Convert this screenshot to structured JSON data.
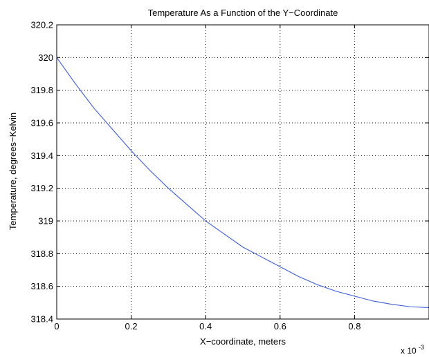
{
  "chart_data": {
    "type": "line",
    "title": "Temperature As a Function of the Y−Coordinate",
    "xlabel": "X−coordinate, meters",
    "ylabel": "Temperature, degrees−Kelvin",
    "x_multiplier": "x 10",
    "x_multiplier_exponent": "-3",
    "xlim": [
      0,
      1
    ],
    "ylim": [
      318.4,
      320.2
    ],
    "xticks": [
      0,
      0.2,
      0.4,
      0.6,
      0.8
    ],
    "xtick_labels": [
      "0",
      "0.2",
      "0.4",
      "0.6",
      "0.8"
    ],
    "yticks": [
      318.4,
      318.6,
      318.8,
      319,
      319.2,
      319.4,
      319.6,
      319.8,
      320,
      320.2
    ],
    "ytick_labels": [
      "318.4",
      "318.6",
      "318.8",
      "319",
      "319.2",
      "319.4",
      "319.6",
      "319.8",
      "320",
      "320.2"
    ],
    "grid": true,
    "series": [
      {
        "color": "#3b5bdb",
        "x": [
          0,
          0.05,
          0.1,
          0.15,
          0.2,
          0.25,
          0.3,
          0.35,
          0.4,
          0.45,
          0.5,
          0.55,
          0.6,
          0.65,
          0.7,
          0.75,
          0.8,
          0.85,
          0.9,
          0.95,
          1.0
        ],
        "y": [
          320.0,
          319.84,
          319.69,
          319.56,
          319.43,
          319.31,
          319.2,
          319.1,
          319.0,
          318.92,
          318.84,
          318.78,
          318.72,
          318.66,
          318.61,
          318.57,
          318.54,
          318.51,
          318.49,
          318.475,
          318.47
        ]
      }
    ]
  }
}
